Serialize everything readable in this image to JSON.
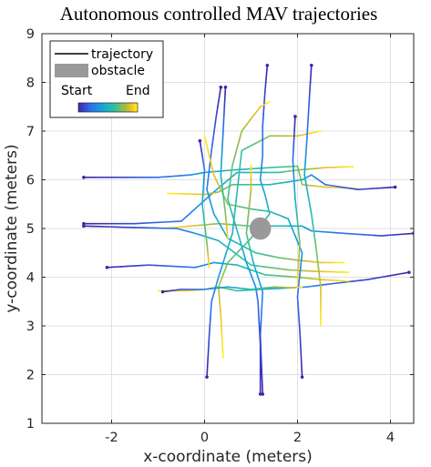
{
  "chart_data": {
    "type": "line",
    "title": "Autonomous controlled MAV trajectories",
    "xlabel": "x-coordinate (meters)",
    "ylabel": "y-coordinate (meters)",
    "xlim": [
      -3.5,
      4.5
    ],
    "ylim": [
      1,
      9
    ],
    "xticks": [
      -2,
      0,
      2,
      4
    ],
    "yticks": [
      1,
      2,
      3,
      4,
      5,
      6,
      7,
      8,
      9
    ],
    "x_tick_labels": [
      "-2",
      "0",
      "2",
      "4"
    ],
    "y_tick_labels": [
      "1",
      "2",
      "3",
      "4",
      "5",
      "6",
      "7",
      "8",
      "9"
    ],
    "grid": true,
    "colormap": "parula",
    "colors": {
      "start": "#3e26a8",
      "end": "#f9fb15",
      "obstacle": "#999999",
      "grid": "#e0e0e0",
      "axis": "#262626"
    },
    "legend": {
      "placement": "top-left",
      "entries": [
        "trajectory",
        "obstacle"
      ],
      "colorbar_start_label": "Start",
      "colorbar_end_label": "End"
    },
    "obstacle": {
      "x": 1.2,
      "y": 5.0,
      "radius": 0.23
    },
    "series": [
      {
        "x": [
          -2.6,
          -1.5,
          -0.5,
          0.2,
          0.7,
          1.6,
          2.0,
          2.6,
          3.2
        ],
        "y": [
          5.1,
          5.1,
          5.15,
          5.75,
          6.15,
          6.15,
          6.2,
          6.25,
          6.27
        ]
      },
      {
        "x": [
          -2.6,
          -1.8,
          -1.0,
          -0.3,
          0.0,
          0.6,
          1.4,
          2.0,
          2.1,
          2.6,
          3.3
        ],
        "y": [
          6.05,
          6.05,
          6.05,
          6.1,
          6.15,
          6.2,
          6.25,
          6.28,
          5.9,
          5.85,
          5.82
        ]
      },
      {
        "x": [
          4.1,
          3.3,
          2.6,
          2.3,
          2.1,
          1.4,
          0.6,
          0.3,
          0.0,
          -0.8
        ],
        "y": [
          5.85,
          5.8,
          5.9,
          6.1,
          6.0,
          5.9,
          5.9,
          5.75,
          5.7,
          5.72
        ]
      },
      {
        "x": [
          4.5,
          3.8,
          3.0,
          2.3,
          2.1,
          1.5,
          1.0,
          0.3,
          -0.3,
          -0.9
        ],
        "y": [
          4.9,
          4.85,
          4.9,
          4.95,
          5.05,
          5.05,
          5.05,
          5.1,
          5.05,
          5.0
        ]
      },
      {
        "x": [
          4.4,
          3.5,
          2.6,
          2.2,
          1.8,
          1.2,
          0.7,
          0.3,
          0.0,
          -0.4,
          -1.0
        ],
        "y": [
          4.1,
          3.95,
          3.85,
          3.8,
          3.78,
          3.75,
          3.72,
          3.8,
          3.75,
          3.72,
          3.72
        ]
      },
      {
        "x": [
          -2.1,
          -1.2,
          -0.2,
          0.2,
          0.7,
          1.3,
          2.0,
          2.5,
          3.1
        ],
        "y": [
          4.2,
          4.25,
          4.2,
          4.3,
          4.25,
          4.05,
          4.0,
          3.95,
          3.92
        ]
      },
      {
        "x": [
          -2.6,
          -1.5,
          -0.6,
          -0.2,
          0.3,
          1.0,
          1.8,
          2.4,
          3.1
        ],
        "y": [
          5.05,
          5.02,
          5.0,
          4.9,
          4.75,
          4.25,
          4.15,
          4.12,
          4.1
        ]
      },
      {
        "x": [
          0.35,
          0.25,
          0.15,
          0.05,
          0.2,
          0.5,
          1.1,
          1.6,
          2.0,
          2.5,
          3.0
        ],
        "y": [
          7.9,
          7.3,
          6.6,
          5.8,
          5.3,
          4.8,
          4.5,
          4.4,
          4.35,
          4.3,
          4.3
        ]
      },
      {
        "x": [
          2.1,
          2.05,
          2.0,
          2.1,
          1.8,
          1.4,
          1.0,
          0.5,
          0.2,
          0.0
        ],
        "y": [
          1.95,
          2.9,
          3.6,
          4.5,
          5.2,
          5.35,
          5.4,
          5.5,
          6.1,
          6.9
        ]
      },
      {
        "x": [
          0.05,
          0.1,
          0.15,
          0.3,
          0.6,
          0.8,
          1.4,
          2.0,
          2.5
        ],
        "y": [
          1.95,
          2.8,
          3.5,
          4.0,
          4.9,
          6.6,
          6.9,
          6.9,
          7.0
        ]
      },
      {
        "x": [
          1.35,
          1.3,
          1.25,
          1.25,
          1.2,
          1.3,
          1.4,
          1.0,
          0.5,
          0.3,
          0.35,
          0.4
        ],
        "y": [
          8.35,
          7.8,
          7.1,
          6.5,
          6.0,
          5.7,
          5.3,
          4.8,
          4.3,
          3.8,
          3.2,
          2.35
        ]
      },
      {
        "x": [
          2.3,
          2.25,
          2.2,
          2.15,
          2.3,
          2.4,
          2.5,
          2.5
        ],
        "y": [
          8.35,
          7.6,
          6.8,
          6.1,
          5.3,
          4.6,
          3.8,
          3.0
        ]
      },
      {
        "x": [
          1.25,
          1.2,
          1.25,
          1.05,
          0.9,
          1.0,
          1.0
        ],
        "y": [
          1.6,
          2.8,
          3.7,
          4.3,
          4.9,
          5.8,
          6.3
        ]
      },
      {
        "x": [
          1.2,
          1.2,
          1.15,
          1.1,
          0.9,
          0.75,
          0.5,
          0.6,
          0.8,
          1.2,
          1.4
        ],
        "y": [
          1.6,
          2.6,
          3.5,
          3.8,
          4.3,
          4.8,
          5.6,
          6.3,
          7.0,
          7.5,
          7.6
        ]
      },
      {
        "x": [
          0.45,
          0.4,
          0.35,
          0.45,
          0.5
        ],
        "y": [
          7.9,
          7.0,
          6.1,
          5.3,
          4.8
        ]
      },
      {
        "x": [
          -0.9,
          -0.5,
          0.0,
          0.5,
          1.0,
          1.5,
          1.9,
          2.1
        ],
        "y": [
          3.7,
          3.75,
          3.75,
          3.8,
          3.75,
          3.8,
          3.78,
          3.8
        ]
      },
      {
        "x": [
          -0.1,
          0.0,
          -0.05,
          0.05,
          0.1
        ],
        "y": [
          6.8,
          6.2,
          5.5,
          4.7,
          4.2
        ]
      },
      {
        "x": [
          1.95,
          1.9,
          1.95,
          2.05,
          2.0
        ],
        "y": [
          7.3,
          6.4,
          5.6,
          4.7,
          3.9
        ]
      }
    ]
  }
}
